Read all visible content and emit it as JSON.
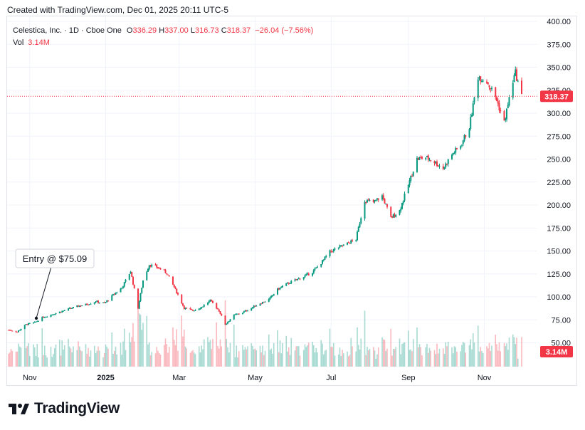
{
  "header": {
    "created_text": "Created with TradingView.com, Dec 01, 2025 20:11 UTC-5"
  },
  "legend": {
    "symbol": "Celestica, Inc. · 1D · Cboe One",
    "open_label": "O",
    "open": "336.29",
    "high_label": "H",
    "high": "337.00",
    "low_label": "L",
    "low": "316.73",
    "close_label": "C",
    "close": "318.37",
    "change": "−26.04 (−7.56%)",
    "vol_label": "Vol",
    "vol": "3.14M"
  },
  "annotation": {
    "text": "Entry @ $75.09"
  },
  "price_badge": "318.37",
  "volume_badge": "3.14M",
  "brand": {
    "name": "TradingView"
  },
  "colors": {
    "up": "#089981",
    "down": "#f23645",
    "grid": "#f0f3fa",
    "text": "#131722"
  },
  "chart_data": {
    "type": "candlestick",
    "title": "Celestica, Inc. · 1D · Cboe One",
    "ylim": [
      50,
      400
    ],
    "y_ticks": [
      "400.00",
      "375.00",
      "350.00",
      "325.00",
      "300.00",
      "275.00",
      "250.00",
      "225.00",
      "200.00",
      "175.00",
      "150.00",
      "125.00",
      "100.00",
      "75.00",
      "50.00"
    ],
    "x_ticks": [
      "Nov",
      "2025",
      "Mar",
      "May",
      "Jul",
      "Sep",
      "Nov"
    ],
    "last_close": 318.37,
    "entry_price": 75.09,
    "close_path": [
      {
        "date": "2024-10-15",
        "close": 64
      },
      {
        "date": "2024-10-22",
        "close": 62
      },
      {
        "date": "2024-10-29",
        "close": 70
      },
      {
        "date": "2024-11-05",
        "close": 72
      },
      {
        "date": "2024-11-12",
        "close": 78
      },
      {
        "date": "2024-11-19",
        "close": 81
      },
      {
        "date": "2024-11-26",
        "close": 84
      },
      {
        "date": "2024-12-03",
        "close": 87
      },
      {
        "date": "2024-12-10",
        "close": 90
      },
      {
        "date": "2024-12-17",
        "close": 92
      },
      {
        "date": "2024-12-24",
        "close": 95
      },
      {
        "date": "2024-12-31",
        "close": 93
      },
      {
        "date": "2025-01-07",
        "close": 102
      },
      {
        "date": "2025-01-14",
        "close": 110
      },
      {
        "date": "2025-01-21",
        "close": 128
      },
      {
        "date": "2025-01-27",
        "close": 88
      },
      {
        "date": "2025-01-31",
        "close": 118
      },
      {
        "date": "2025-02-05",
        "close": 135
      },
      {
        "date": "2025-02-12",
        "close": 132
      },
      {
        "date": "2025-02-19",
        "close": 126
      },
      {
        "date": "2025-02-26",
        "close": 108
      },
      {
        "date": "2025-03-05",
        "close": 88
      },
      {
        "date": "2025-03-12",
        "close": 85
      },
      {
        "date": "2025-03-19",
        "close": 89
      },
      {
        "date": "2025-03-26",
        "close": 96
      },
      {
        "date": "2025-04-02",
        "close": 85
      },
      {
        "date": "2025-04-07",
        "close": 70
      },
      {
        "date": "2025-04-14",
        "close": 80
      },
      {
        "date": "2025-04-21",
        "close": 83
      },
      {
        "date": "2025-04-28",
        "close": 88
      },
      {
        "date": "2025-05-05",
        "close": 93
      },
      {
        "date": "2025-05-12",
        "close": 97
      },
      {
        "date": "2025-05-19",
        "close": 108
      },
      {
        "date": "2025-05-26",
        "close": 114
      },
      {
        "date": "2025-06-02",
        "close": 118
      },
      {
        "date": "2025-06-09",
        "close": 122
      },
      {
        "date": "2025-06-16",
        "close": 127
      },
      {
        "date": "2025-06-23",
        "close": 137
      },
      {
        "date": "2025-06-30",
        "close": 149
      },
      {
        "date": "2025-07-07",
        "close": 154
      },
      {
        "date": "2025-07-14",
        "close": 158
      },
      {
        "date": "2025-07-21",
        "close": 163
      },
      {
        "date": "2025-07-28",
        "close": 205
      },
      {
        "date": "2025-08-04",
        "close": 203
      },
      {
        "date": "2025-08-11",
        "close": 210
      },
      {
        "date": "2025-08-18",
        "close": 186
      },
      {
        "date": "2025-08-25",
        "close": 194
      },
      {
        "date": "2025-09-01",
        "close": 222
      },
      {
        "date": "2025-09-08",
        "close": 250
      },
      {
        "date": "2025-09-15",
        "close": 252
      },
      {
        "date": "2025-09-22",
        "close": 247
      },
      {
        "date": "2025-09-29",
        "close": 240
      },
      {
        "date": "2025-10-06",
        "close": 255
      },
      {
        "date": "2025-10-13",
        "close": 265
      },
      {
        "date": "2025-10-20",
        "close": 285
      },
      {
        "date": "2025-10-27",
        "close": 340
      },
      {
        "date": "2025-11-03",
        "close": 335
      },
      {
        "date": "2025-11-10",
        "close": 318
      },
      {
        "date": "2025-11-17",
        "close": 290
      },
      {
        "date": "2025-11-24",
        "close": 335
      },
      {
        "date": "2025-11-26",
        "close": 344
      },
      {
        "date": "2025-12-01",
        "close": 318.37
      }
    ]
  }
}
